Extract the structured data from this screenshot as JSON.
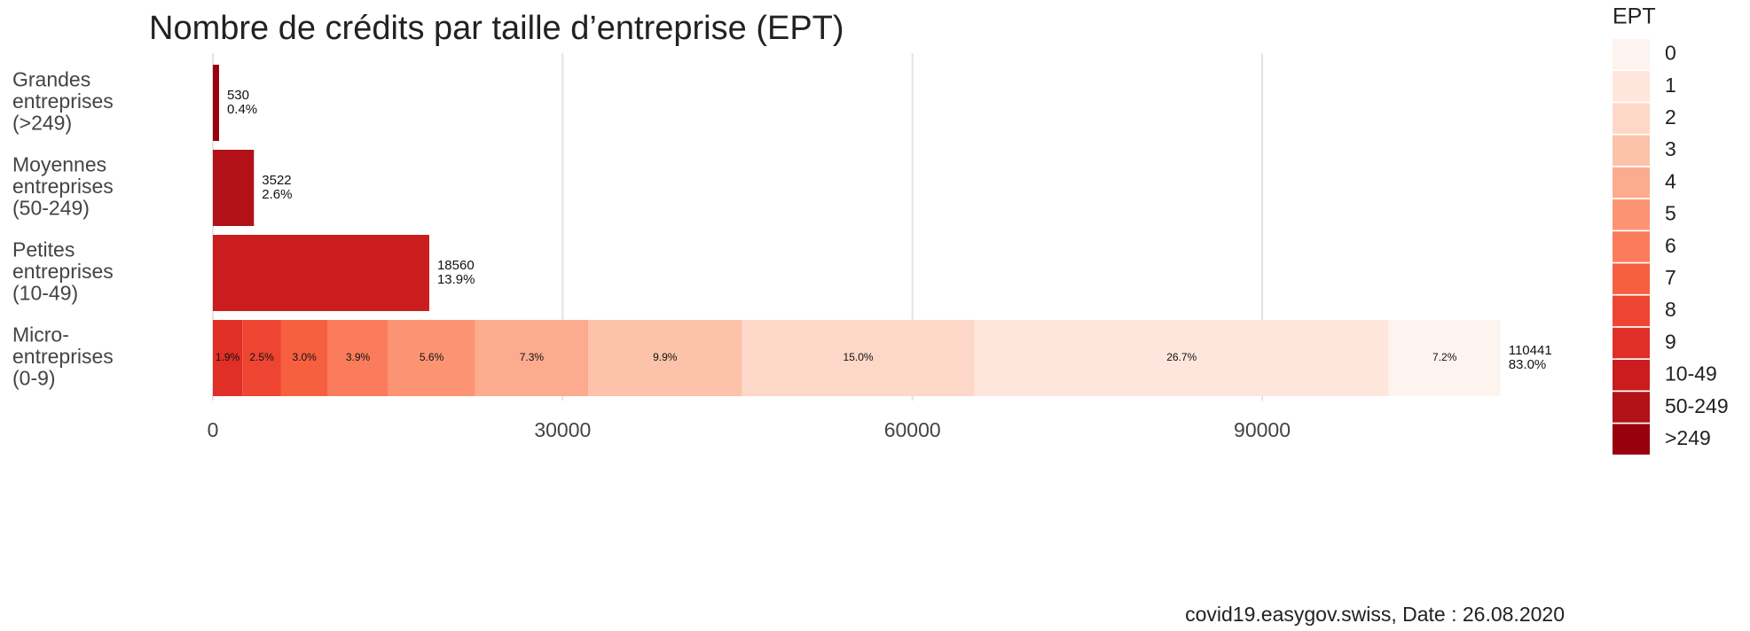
{
  "chart_data": {
    "type": "stacked-barh",
    "title": "Nombre de crédits par taille d’entreprise (EPT)",
    "caption": "covid19.easygov.swiss, Date : 26.08.2020",
    "legend_title": "EPT",
    "legend_position": "right",
    "grid": true,
    "categories": [
      "Grandes\nentreprises\n(>249)",
      "Moyennes\nentreprises\n(50-249)",
      "Petites\nentreprises\n(10-49)",
      "Micro-\nentreprises\n(0-9)"
    ],
    "xlim": [
      -5500,
      116000
    ],
    "xticks": [
      0,
      30000,
      60000,
      90000
    ],
    "totals": [
      530,
      3522,
      18560,
      110441
    ],
    "total_shares": [
      "0.4%",
      "2.6%",
      "13.9%",
      "83.0%"
    ],
    "series": [
      {
        "name": "0",
        "color": "#fef4ef",
        "values": [
          null,
          null,
          null,
          9587
        ],
        "value_labels": [
          null,
          null,
          null,
          "7.2%"
        ]
      },
      {
        "name": "1",
        "color": "#fee6dc",
        "values": [
          null,
          null,
          null,
          35525
        ],
        "value_labels": [
          null,
          null,
          null,
          "26.7%"
        ]
      },
      {
        "name": "2",
        "color": "#fdd7c7",
        "values": [
          null,
          null,
          null,
          19958
        ],
        "value_labels": [
          null,
          null,
          null,
          "15.0%"
        ]
      },
      {
        "name": "3",
        "color": "#fcc2aa",
        "values": [
          null,
          null,
          null,
          13172
        ],
        "value_labels": [
          null,
          null,
          null,
          "9.9%"
        ]
      },
      {
        "name": "4",
        "color": "#fcab8e",
        "values": [
          null,
          null,
          null,
          9713
        ],
        "value_labels": [
          null,
          null,
          null,
          "7.3%"
        ]
      },
      {
        "name": "5",
        "color": "#fc9474",
        "values": [
          null,
          null,
          null,
          7451
        ],
        "value_labels": [
          null,
          null,
          null,
          "5.6%"
        ]
      },
      {
        "name": "6",
        "color": "#fb7c5c",
        "values": [
          null,
          null,
          null,
          5189
        ],
        "value_labels": [
          null,
          null,
          null,
          "3.9%"
        ]
      },
      {
        "name": "7",
        "color": "#f6603f",
        "values": [
          null,
          null,
          null,
          3992
        ],
        "value_labels": [
          null,
          null,
          null,
          "3.0%"
        ]
      },
      {
        "name": "8",
        "color": "#ee4532",
        "values": [
          null,
          null,
          null,
          3326
        ],
        "value_labels": [
          null,
          null,
          null,
          "2.5%"
        ]
      },
      {
        "name": "9",
        "color": "#e02f27",
        "values": [
          null,
          null,
          null,
          2528
        ],
        "value_labels": [
          null,
          null,
          null,
          "1.9%"
        ]
      },
      {
        "name": "10-49",
        "color": "#cb1d1e",
        "values": [
          null,
          null,
          18560,
          null
        ]
      },
      {
        "name": "50-249",
        "color": "#b11117",
        "values": [
          null,
          3522,
          null,
          null
        ]
      },
      {
        "name": ">249",
        "color": "#99000d",
        "values": [
          530,
          null,
          null,
          null
        ]
      }
    ]
  }
}
